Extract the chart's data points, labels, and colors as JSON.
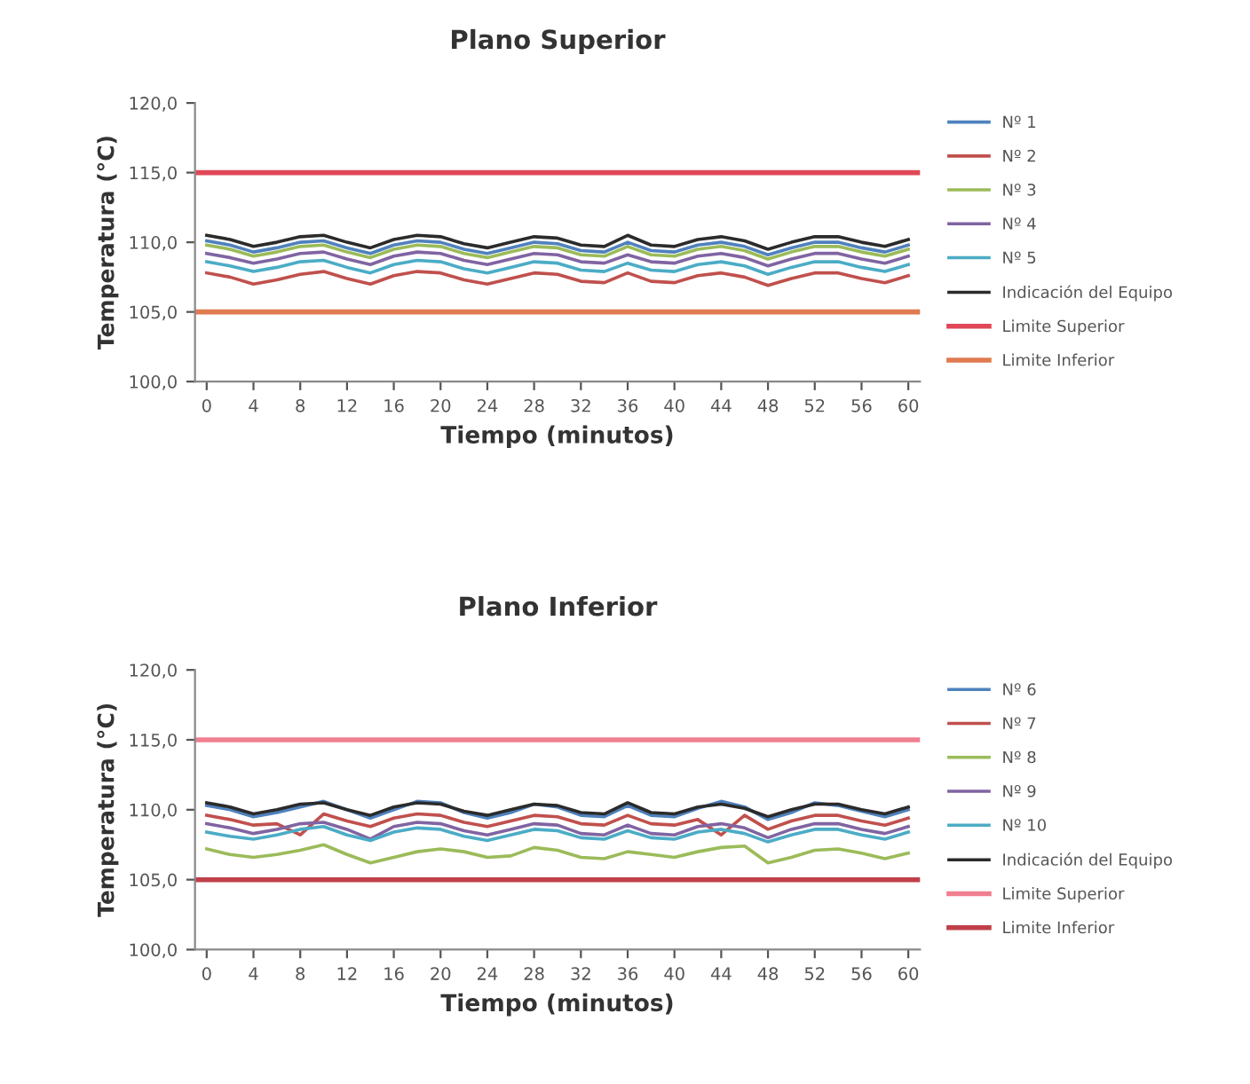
{
  "chart_data": [
    {
      "type": "line",
      "title": "Plano Superior",
      "xlabel": "Tiempo (minutos)",
      "ylabel": "Temperatura (°C)",
      "x": [
        0,
        2,
        4,
        6,
        8,
        10,
        12,
        14,
        16,
        18,
        20,
        22,
        24,
        26,
        28,
        30,
        32,
        34,
        36,
        38,
        40,
        42,
        44,
        46,
        48,
        50,
        52,
        54,
        56,
        58,
        60
      ],
      "xlim": [
        -1,
        61
      ],
      "xticks": [
        0,
        4,
        8,
        12,
        16,
        20,
        24,
        28,
        32,
        36,
        40,
        44,
        48,
        52,
        56,
        60
      ],
      "ylim": [
        100,
        120
      ],
      "yticks": [
        {
          "value": 100,
          "label": "100,0"
        },
        {
          "value": 105,
          "label": "105,0"
        },
        {
          "value": 110,
          "label": "110,0"
        },
        {
          "value": 115,
          "label": "115,0"
        },
        {
          "value": 120,
          "label": "120,0"
        }
      ],
      "grid": false,
      "legend": "right",
      "marker": "none",
      "line_style": "solid",
      "series": [
        {
          "name": "Nº 1",
          "color": "#4f81bd",
          "values": [
            110.1,
            109.8,
            109.3,
            109.6,
            110.0,
            110.1,
            109.6,
            109.2,
            109.8,
            110.1,
            110.0,
            109.5,
            109.2,
            109.6,
            110.0,
            109.9,
            109.4,
            109.3,
            110.0,
            109.4,
            109.3,
            109.8,
            110.0,
            109.7,
            109.1,
            109.6,
            110.0,
            110.0,
            109.6,
            109.3,
            109.8
          ]
        },
        {
          "name": "Nº 2",
          "color": "#c0504d",
          "values": [
            107.8,
            107.5,
            107.0,
            107.3,
            107.7,
            107.9,
            107.4,
            107.0,
            107.6,
            107.9,
            107.8,
            107.3,
            107.0,
            107.4,
            107.8,
            107.7,
            107.2,
            107.1,
            107.8,
            107.2,
            107.1,
            107.6,
            107.8,
            107.5,
            106.9,
            107.4,
            107.8,
            107.8,
            107.4,
            107.1,
            107.6
          ]
        },
        {
          "name": "Nº 3",
          "color": "#9bbb59",
          "values": [
            109.8,
            109.5,
            109.0,
            109.3,
            109.7,
            109.8,
            109.3,
            108.9,
            109.5,
            109.8,
            109.7,
            109.2,
            108.9,
            109.3,
            109.7,
            109.6,
            109.1,
            109.0,
            109.7,
            109.1,
            109.0,
            109.5,
            109.7,
            109.4,
            108.8,
            109.3,
            109.7,
            109.7,
            109.3,
            109.0,
            109.5
          ]
        },
        {
          "name": "Nº 4",
          "color": "#8064a2",
          "values": [
            109.2,
            108.9,
            108.5,
            108.8,
            109.2,
            109.3,
            108.8,
            108.4,
            109.0,
            109.3,
            109.2,
            108.7,
            108.4,
            108.8,
            109.2,
            109.1,
            108.6,
            108.5,
            109.1,
            108.6,
            108.5,
            109.0,
            109.2,
            108.9,
            108.3,
            108.8,
            109.2,
            109.2,
            108.8,
            108.5,
            109.0
          ]
        },
        {
          "name": "Nº 5",
          "color": "#4bacc6",
          "values": [
            108.6,
            108.3,
            107.9,
            108.2,
            108.6,
            108.7,
            108.2,
            107.8,
            108.4,
            108.7,
            108.6,
            108.1,
            107.8,
            108.2,
            108.6,
            108.5,
            108.0,
            107.9,
            108.5,
            108.0,
            107.9,
            108.4,
            108.6,
            108.3,
            107.7,
            108.2,
            108.6,
            108.6,
            108.2,
            107.9,
            108.4
          ]
        },
        {
          "name": "Indicación del Equipo",
          "color": "#2b2b2b",
          "values": [
            110.5,
            110.2,
            109.7,
            110.0,
            110.4,
            110.5,
            110.0,
            109.6,
            110.2,
            110.5,
            110.4,
            109.9,
            109.6,
            110.0,
            110.4,
            110.3,
            109.8,
            109.7,
            110.5,
            109.8,
            109.7,
            110.2,
            110.4,
            110.1,
            109.5,
            110.0,
            110.4,
            110.4,
            110.0,
            109.7,
            110.2
          ]
        }
      ],
      "ref_lines": [
        {
          "axis": "y",
          "value": 115,
          "label": "Limite Superior",
          "color": "#e04858"
        },
        {
          "axis": "y",
          "value": 105,
          "label": "Limite Inferior",
          "color": "#e07a50"
        }
      ]
    },
    {
      "type": "line",
      "title": "Plano Inferior",
      "xlabel": "Tiempo (minutos)",
      "ylabel": "Temperatura (°C)",
      "x": [
        0,
        2,
        4,
        6,
        8,
        10,
        12,
        14,
        16,
        18,
        20,
        22,
        24,
        26,
        28,
        30,
        32,
        34,
        36,
        38,
        40,
        42,
        44,
        46,
        48,
        50,
        52,
        54,
        56,
        58,
        60
      ],
      "xlim": [
        -1,
        61
      ],
      "xticks": [
        0,
        4,
        8,
        12,
        16,
        20,
        24,
        28,
        32,
        36,
        40,
        44,
        48,
        52,
        56,
        60
      ],
      "ylim": [
        100,
        120
      ],
      "yticks": [
        {
          "value": 100,
          "label": "100,0"
        },
        {
          "value": 105,
          "label": "105,0"
        },
        {
          "value": 110,
          "label": "110,0"
        },
        {
          "value": 115,
          "label": "115,0"
        },
        {
          "value": 120,
          "label": "120,0"
        }
      ],
      "grid": false,
      "legend": "right",
      "marker": "none",
      "line_style": "solid",
      "series": [
        {
          "name": "Nº 6",
          "color": "#4f81bd",
          "values": [
            110.3,
            110.0,
            109.5,
            109.8,
            110.2,
            110.6,
            110.0,
            109.4,
            110.0,
            110.6,
            110.5,
            109.8,
            109.4,
            109.8,
            110.4,
            110.2,
            109.6,
            109.5,
            110.3,
            109.6,
            109.5,
            110.1,
            110.6,
            110.2,
            109.3,
            109.8,
            110.5,
            110.3,
            109.9,
            109.5,
            110.0
          ]
        },
        {
          "name": "Nº 7",
          "color": "#c0504d",
          "values": [
            109.6,
            109.3,
            108.9,
            109.0,
            108.2,
            109.7,
            109.2,
            108.8,
            109.4,
            109.7,
            109.6,
            109.1,
            108.8,
            109.2,
            109.6,
            109.5,
            109.0,
            108.9,
            109.6,
            109.0,
            108.9,
            109.3,
            108.2,
            109.6,
            108.6,
            109.2,
            109.6,
            109.6,
            109.2,
            108.9,
            109.4
          ]
        },
        {
          "name": "Nº 8",
          "color": "#9bbb59",
          "values": [
            107.2,
            106.8,
            106.6,
            106.8,
            107.1,
            107.5,
            106.8,
            106.2,
            106.6,
            107.0,
            107.2,
            107.0,
            106.6,
            106.7,
            107.3,
            107.1,
            106.6,
            106.5,
            107.0,
            106.8,
            106.6,
            107.0,
            107.3,
            107.4,
            106.2,
            106.6,
            107.1,
            107.2,
            106.9,
            106.5,
            106.9
          ]
        },
        {
          "name": "Nº 9",
          "color": "#8064a2",
          "values": [
            109.0,
            108.7,
            108.3,
            108.6,
            109.0,
            109.1,
            108.6,
            107.9,
            108.8,
            109.1,
            109.0,
            108.5,
            108.2,
            108.6,
            109.0,
            108.9,
            108.3,
            108.2,
            108.9,
            108.3,
            108.2,
            108.8,
            109.0,
            108.7,
            108.0,
            108.6,
            109.0,
            109.0,
            108.6,
            108.3,
            108.8
          ]
        },
        {
          "name": "Nº 10",
          "color": "#4bacc6",
          "values": [
            108.4,
            108.1,
            107.9,
            108.2,
            108.6,
            108.8,
            108.2,
            107.8,
            108.4,
            108.7,
            108.6,
            108.1,
            107.8,
            108.2,
            108.6,
            108.5,
            108.0,
            107.9,
            108.5,
            108.0,
            107.9,
            108.4,
            108.6,
            108.3,
            107.7,
            108.2,
            108.6,
            108.6,
            108.2,
            107.9,
            108.4
          ]
        },
        {
          "name": "Indicación del Equipo",
          "color": "#2b2b2b",
          "values": [
            110.5,
            110.2,
            109.7,
            110.0,
            110.4,
            110.5,
            110.0,
            109.6,
            110.2,
            110.5,
            110.4,
            109.9,
            109.6,
            110.0,
            110.4,
            110.3,
            109.8,
            109.7,
            110.5,
            109.8,
            109.7,
            110.2,
            110.4,
            110.1,
            109.5,
            110.0,
            110.4,
            110.4,
            110.0,
            109.7,
            110.2
          ]
        }
      ],
      "ref_lines": [
        {
          "axis": "y",
          "value": 115,
          "label": "Limite Superior",
          "color": "#f08090"
        },
        {
          "axis": "y",
          "value": 105,
          "label": "Limite Inferior",
          "color": "#c0404a"
        }
      ]
    }
  ]
}
